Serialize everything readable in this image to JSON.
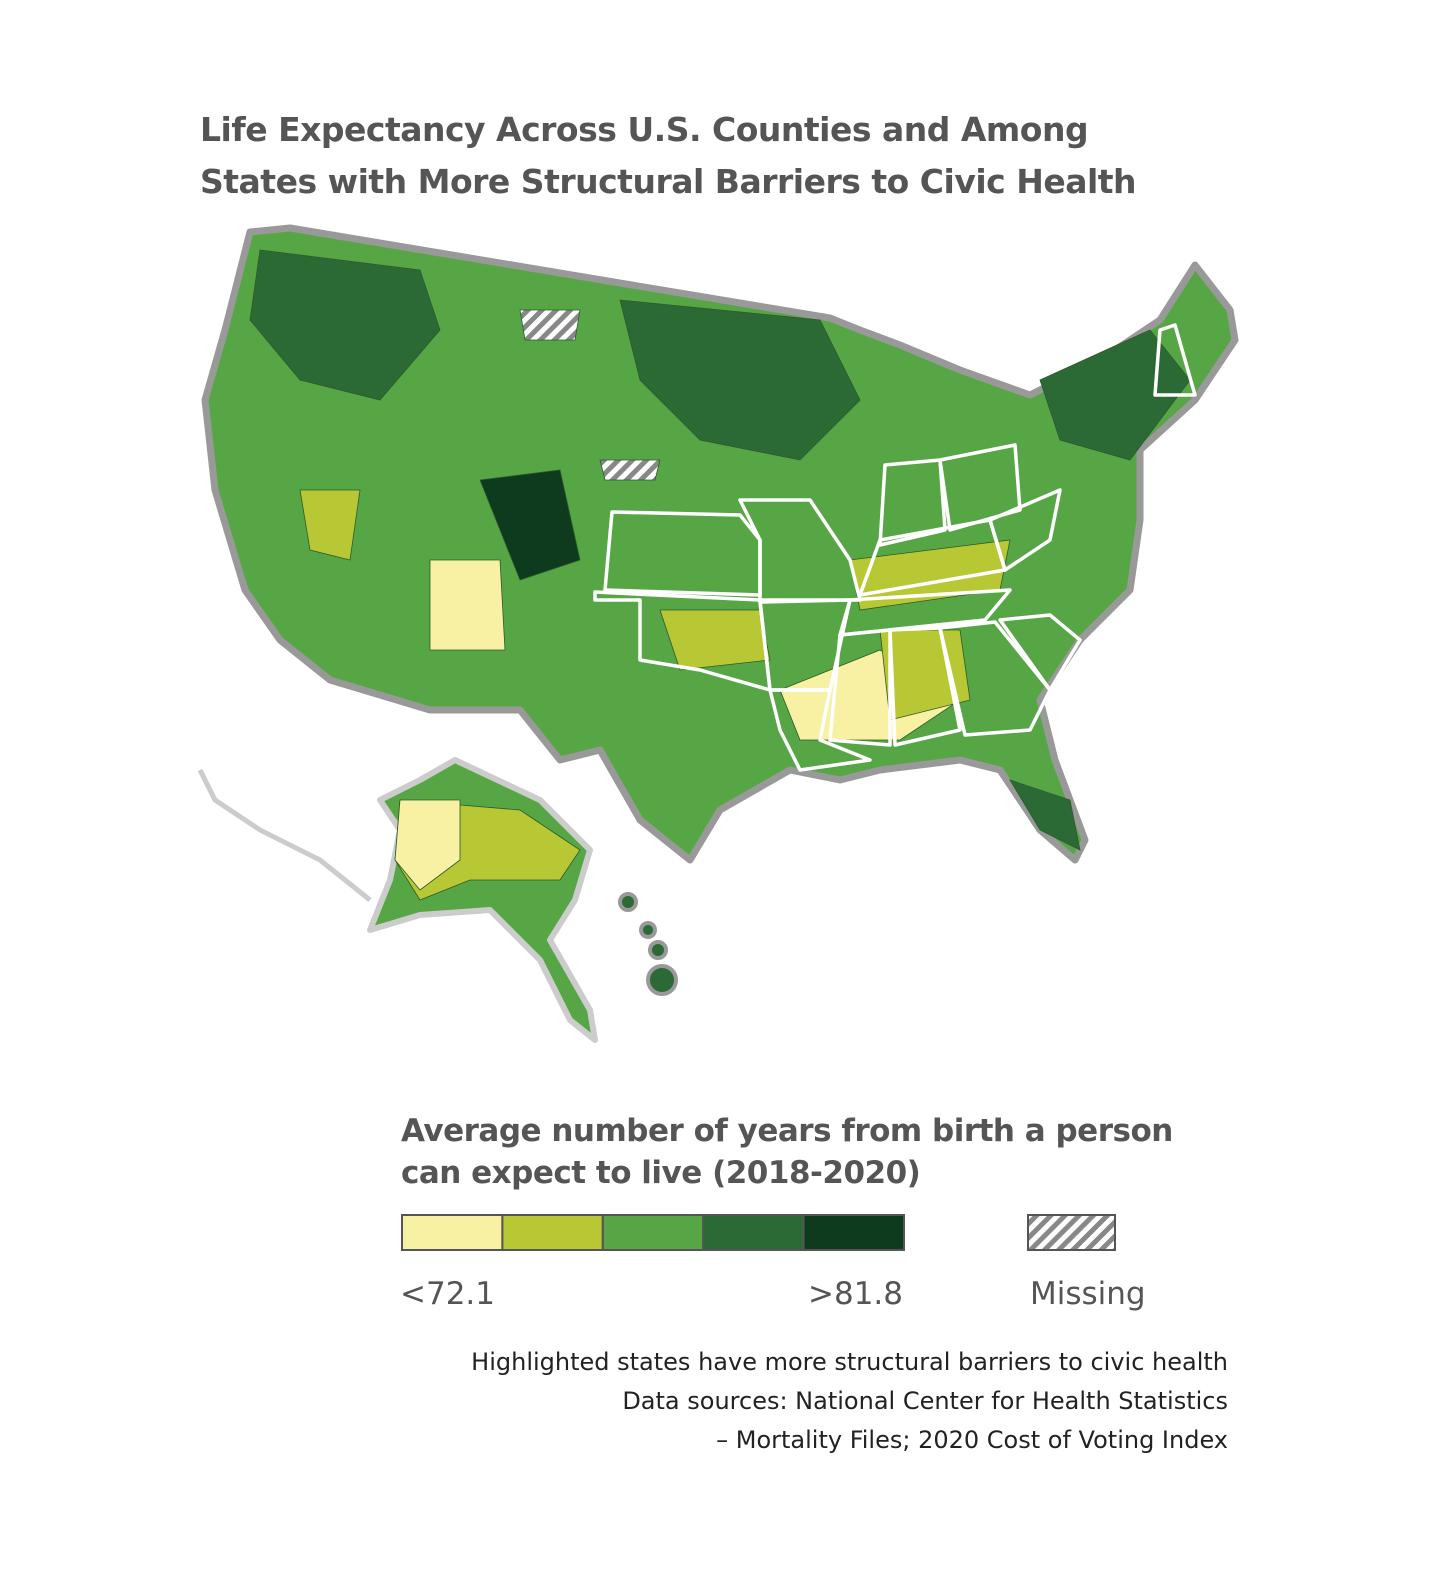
{
  "title": "Life Expectancy Across U.S. Counties and Among  States with More Structural Barriers to Civic Health",
  "legend": {
    "title": "Average number of years from birth a person can expect to live (2018-2020)",
    "colors": [
      "#f8f0a2",
      "#b8c734",
      "#57a645",
      "#2b6a35",
      "#0e3a1d"
    ],
    "low_label": "<72.1",
    "high_label": ">81.8",
    "missing_label": "Missing"
  },
  "notes": [
    "Highlighted states have more structural barriers to civic health",
    "Data sources: National Center for Health Statistics",
    "– Mortality Files; 2020 Cost of Voting Index"
  ]
}
